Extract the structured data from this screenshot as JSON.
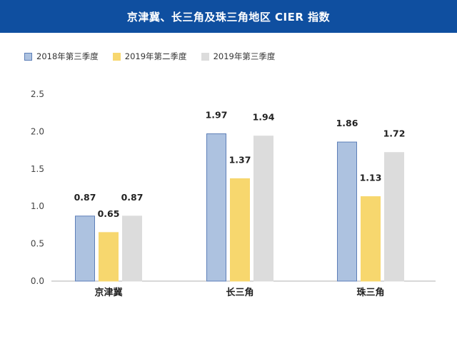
{
  "header": {
    "title": "京津冀、长三角及珠三角地区 CIER 指数"
  },
  "chart_data": {
    "type": "bar",
    "title": "京津冀、长三角及珠三角地区 CIER 指数",
    "categories": [
      "京津冀",
      "长三角",
      "珠三角"
    ],
    "series": [
      {
        "name": "2018年第三季度",
        "values": [
          0.87,
          1.97,
          1.86
        ],
        "color": "#adc2e0",
        "stroke": "#5d7fb8"
      },
      {
        "name": "2019年第二季度",
        "values": [
          0.65,
          1.37,
          1.13
        ],
        "color": "#f7d76e",
        "stroke": "#f7d76e"
      },
      {
        "name": "2019年第三季度",
        "values": [
          0.87,
          1.94,
          1.72
        ],
        "color": "#dcdcdc",
        "stroke": "#dcdcdc"
      }
    ],
    "data_labels": [
      [
        "0.87",
        "1.97",
        "1.86"
      ],
      [
        "0.65",
        "1.37",
        "1.13"
      ],
      [
        "0.87",
        "1.94",
        "1.72"
      ]
    ],
    "yticks": [
      "0.0",
      "0.5",
      "1.0",
      "1.5",
      "2.0",
      "2.5"
    ],
    "ylim": [
      0,
      2.5
    ],
    "xlabel": "",
    "ylabel": "",
    "legend_position": "top-left",
    "grid": false
  }
}
